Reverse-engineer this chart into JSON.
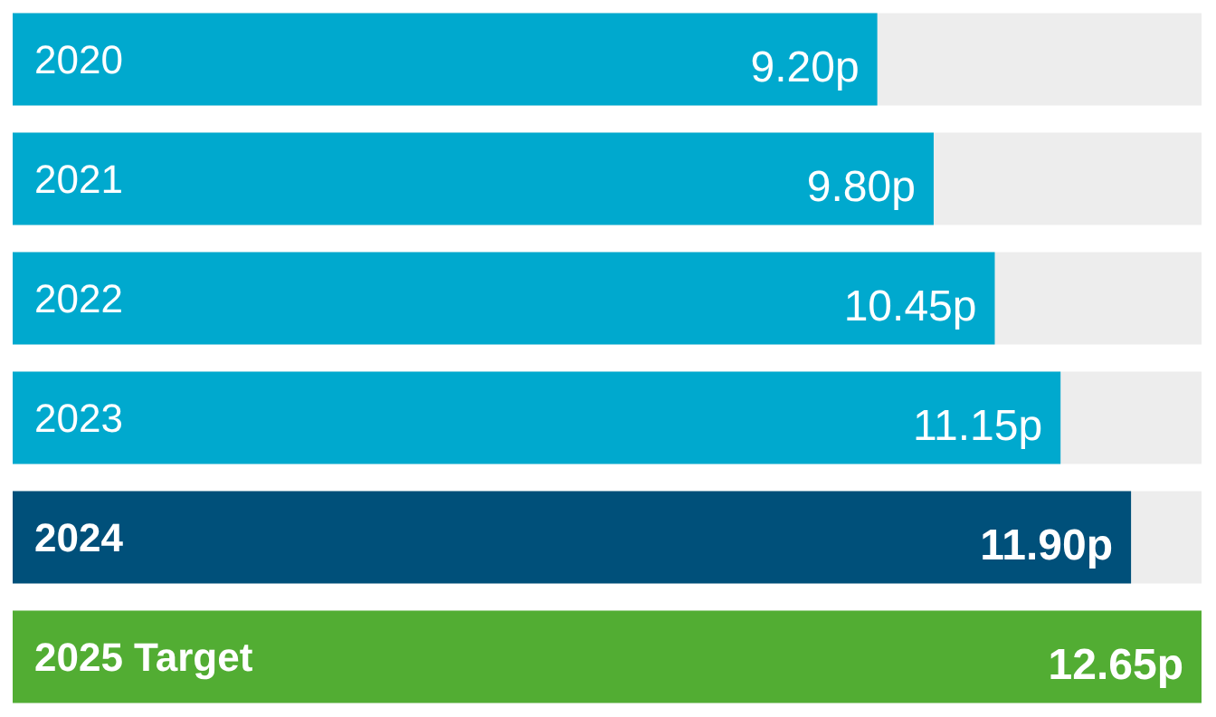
{
  "chart_data": {
    "type": "bar",
    "orientation": "horizontal",
    "categories": [
      "2020",
      "2021",
      "2022",
      "2023",
      "2024",
      "2025 Target"
    ],
    "values": [
      9.2,
      9.8,
      10.45,
      11.15,
      11.9,
      12.65
    ],
    "colors": [
      "#00a9ce",
      "#00a9ce",
      "#00a9ce",
      "#00a9ce",
      "#00507a",
      "#52ad33"
    ],
    "value_labels": [
      "9.20p",
      "9.80p",
      "10.45p",
      "11.15p",
      "11.90p",
      "12.65p"
    ],
    "tick_labels": false
  }
}
